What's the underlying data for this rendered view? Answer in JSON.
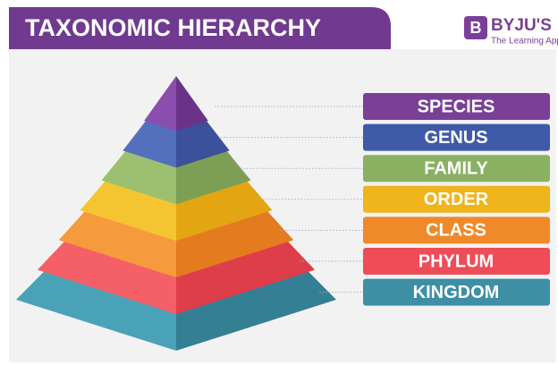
{
  "header": {
    "title": "TAXONOMIC HIERARCHY"
  },
  "logo": {
    "icon": "B",
    "brand": "BYJU'S",
    "tagline": "The Learning App"
  },
  "levels": [
    "SPECIES",
    "GENUS",
    "FAMILY",
    "ORDER",
    "CLASS",
    "PHYLUM",
    "KINGDOM"
  ]
}
